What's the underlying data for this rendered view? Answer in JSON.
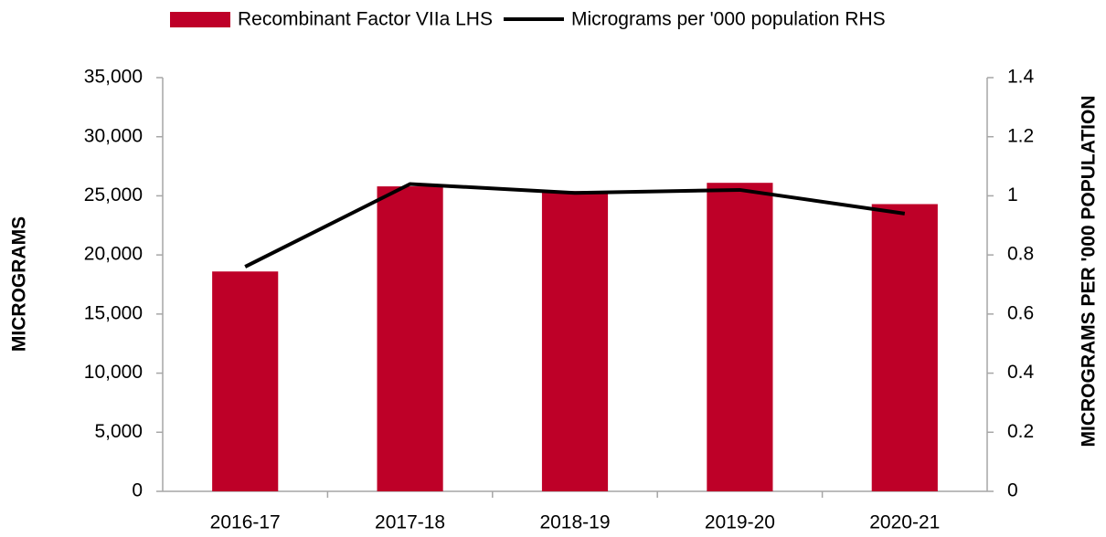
{
  "chart_data": {
    "type": "bar_line",
    "categories": [
      "2016-17",
      "2017-18",
      "2018-19",
      "2019-20",
      "2020-21"
    ],
    "series": [
      {
        "name": "Recombinant Factor VIIa LHS",
        "type": "bar",
        "color": "#be0028",
        "values": [
          18600,
          25800,
          25400,
          26100,
          24300
        ]
      },
      {
        "name": "Micrograms per '000 population RHS",
        "type": "line",
        "axis": "y2",
        "color": "#000000",
        "values": [
          0.76,
          1.04,
          1.01,
          1.02,
          0.94
        ]
      }
    ],
    "ylabel": "MICROGRAMS",
    "y2label": "MICROGRAMS PER '000 POPULATION",
    "ylim": [
      0,
      35000
    ],
    "yticks": [
      0,
      {
        "value": 5000,
        "label": "5,000"
      },
      {
        "value": 10000,
        "label": "10,000"
      },
      {
        "value": 15000,
        "label": "15,000"
      },
      {
        "value": 20000,
        "label": "20,000"
      },
      {
        "value": 25000,
        "label": "25,000"
      },
      {
        "value": 30000,
        "label": "30,000"
      },
      {
        "value": 35000,
        "label": "35,000"
      }
    ],
    "y2lim": [
      0,
      1.4
    ],
    "y2ticks": [
      0,
      0.2,
      0.4,
      0.6,
      0.8,
      1,
      1.2,
      1.4
    ],
    "legend": "top"
  }
}
